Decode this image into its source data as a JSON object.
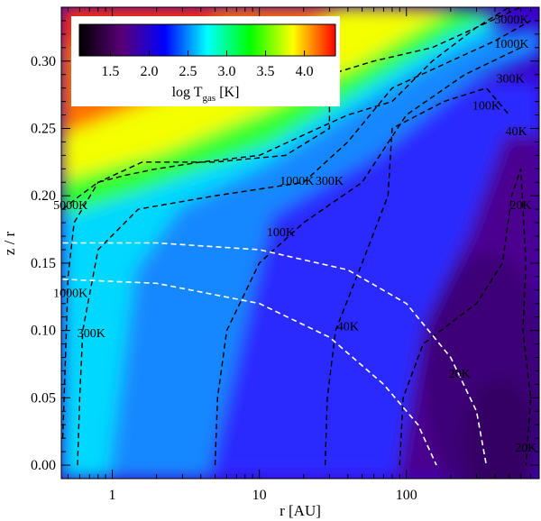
{
  "chart_data": {
    "type": "heatmap",
    "xlabel": "r [AU]",
    "ylabel": "z / r",
    "x_scale": "log",
    "xlim": [
      0.45,
      800
    ],
    "ylim": [
      -0.01,
      0.34
    ],
    "x_ticks": [
      {
        "value": 1,
        "label": "1"
      },
      {
        "value": 10,
        "label": "10"
      },
      {
        "value": 100,
        "label": "100"
      }
    ],
    "y_ticks": [
      {
        "value": 0.0,
        "label": "0.00"
      },
      {
        "value": 0.05,
        "label": "0.05"
      },
      {
        "value": 0.1,
        "label": "0.10"
      },
      {
        "value": 0.15,
        "label": "0.15"
      },
      {
        "value": 0.2,
        "label": "0.20"
      },
      {
        "value": 0.25,
        "label": "0.25"
      },
      {
        "value": 0.3,
        "label": "0.30"
      }
    ],
    "colorbar": {
      "label_main": "log T",
      "label_sub": "gas",
      "label_unit": " [K]",
      "range": [
        1.1,
        4.4
      ],
      "ticks": [
        "1.5",
        "2.0",
        "2.5",
        "3.0",
        "3.5",
        "4.0"
      ],
      "tick_values": [
        1.5,
        2.0,
        2.5,
        3.0,
        3.5,
        4.0
      ],
      "colors": [
        "#000000",
        "#5a0078",
        "#0000ff",
        "#00ffff",
        "#00ff00",
        "#ffff00",
        "#ff0000"
      ]
    },
    "contours": [
      {
        "label": "5000K",
        "points": [
          [
            0.46,
            0.19
          ],
          [
            0.6,
            0.2
          ],
          [
            0.8,
            0.21
          ],
          [
            1.2,
            0.215
          ],
          [
            2,
            0.22
          ],
          [
            4,
            0.225
          ],
          [
            10,
            0.23
          ],
          [
            25,
            0.25
          ],
          [
            40,
            0.26
          ],
          [
            80,
            0.27
          ],
          [
            150,
            0.3
          ],
          [
            300,
            0.325
          ],
          [
            500,
            0.34
          ]
        ]
      },
      {
        "label": "1000K",
        "points": [
          [
            0.46,
            0.02
          ],
          [
            0.48,
            0.08
          ],
          [
            0.5,
            0.14
          ],
          [
            0.55,
            0.18
          ],
          [
            0.8,
            0.21
          ],
          [
            1.6,
            0.225
          ],
          [
            5,
            0.225
          ],
          [
            15,
            0.23
          ],
          [
            30,
            0.25
          ],
          [
            30,
            0.29
          ],
          [
            60,
            0.3
          ],
          [
            150,
            0.31
          ],
          [
            300,
            0.325
          ],
          [
            600,
            0.34
          ]
        ]
      },
      {
        "label": "300K",
        "points": [
          [
            0.58,
            0.0
          ],
          [
            0.6,
            0.05
          ],
          [
            0.63,
            0.1
          ],
          [
            0.8,
            0.16
          ],
          [
            1.5,
            0.19
          ],
          [
            5,
            0.2
          ],
          [
            20,
            0.21
          ],
          [
            40,
            0.24
          ],
          [
            80,
            0.28
          ],
          [
            200,
            0.3
          ],
          [
            400,
            0.315
          ],
          [
            700,
            0.33
          ]
        ]
      },
      {
        "label": "100K",
        "points": [
          [
            5,
            0.0
          ],
          [
            5.2,
            0.05
          ],
          [
            6,
            0.1
          ],
          [
            10,
            0.15
          ],
          [
            20,
            0.18
          ],
          [
            50,
            0.21
          ],
          [
            100,
            0.26
          ],
          [
            250,
            0.29
          ],
          [
            600,
            0.31
          ]
        ]
      },
      {
        "label": "40K",
        "points": [
          [
            28,
            0.0
          ],
          [
            29,
            0.05
          ],
          [
            33,
            0.1
          ],
          [
            50,
            0.15
          ],
          [
            75,
            0.2
          ],
          [
            80,
            0.25
          ],
          [
            180,
            0.27
          ],
          [
            350,
            0.28
          ],
          [
            500,
            0.26
          ]
        ]
      },
      {
        "label": "20K",
        "points": [
          [
            90,
            0.0
          ],
          [
            95,
            0.05
          ],
          [
            130,
            0.09
          ],
          [
            300,
            0.12
          ],
          [
            450,
            0.15
          ],
          [
            520,
            0.2
          ],
          [
            600,
            0.22
          ],
          [
            650,
            0.15
          ],
          [
            620,
            0.1
          ],
          [
            700,
            0.05
          ],
          [
            650,
            0.0
          ]
        ]
      }
    ],
    "contour_labels": [
      {
        "text": "5000K",
        "x": 520,
        "y": 0.328
      },
      {
        "text": "1000K",
        "x": 520,
        "y": 0.31
      },
      {
        "text": "300K",
        "x": 510,
        "y": 0.284
      },
      {
        "text": "100K",
        "x": 350,
        "y": 0.264
      },
      {
        "text": "40K",
        "x": 560,
        "y": 0.245
      },
      {
        "text": "1000K",
        "x": 18,
        "y": 0.208
      },
      {
        "text": "300K",
        "x": 30,
        "y": 0.208
      },
      {
        "text": "5000K",
        "x": 0.52,
        "y": 0.19
      },
      {
        "text": "100K",
        "x": 14,
        "y": 0.17
      },
      {
        "text": "20K",
        "x": 600,
        "y": 0.19
      },
      {
        "text": "1000K",
        "x": 0.52,
        "y": 0.125
      },
      {
        "text": "300K",
        "x": 0.72,
        "y": 0.095
      },
      {
        "text": "40K",
        "x": 40,
        "y": 0.1
      },
      {
        "text": "20K",
        "x": 230,
        "y": 0.065
      },
      {
        "text": "20K",
        "x": 650,
        "y": 0.01
      }
    ],
    "white_dashed": [
      {
        "points": [
          [
            0.46,
            0.165
          ],
          [
            2,
            0.165
          ],
          [
            10,
            0.16
          ],
          [
            40,
            0.145
          ],
          [
            100,
            0.12
          ],
          [
            200,
            0.08
          ],
          [
            300,
            0.04
          ],
          [
            350,
            0.0
          ]
        ]
      },
      {
        "points": [
          [
            0.46,
            0.138
          ],
          [
            2,
            0.135
          ],
          [
            10,
            0.12
          ],
          [
            30,
            0.095
          ],
          [
            70,
            0.06
          ],
          [
            120,
            0.03
          ],
          [
            160,
            0.0
          ]
        ]
      }
    ]
  }
}
